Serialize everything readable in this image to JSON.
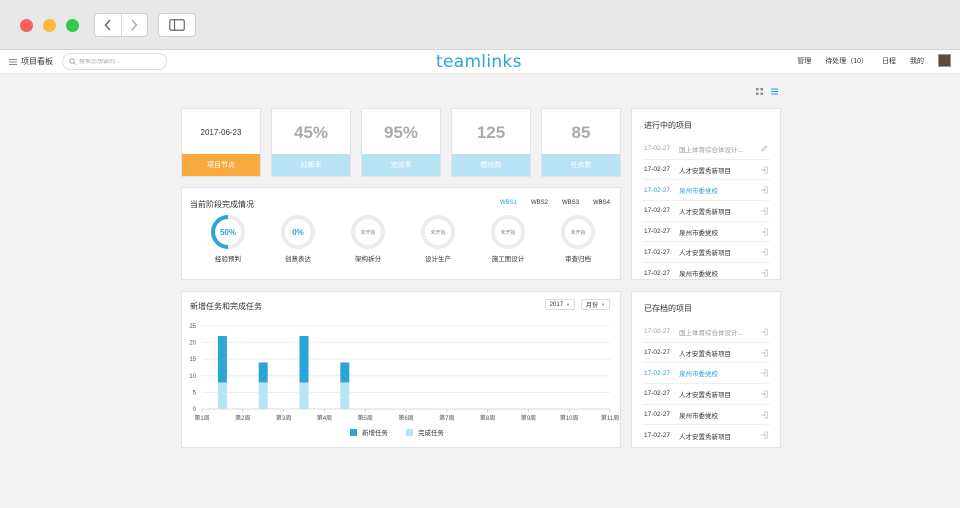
{
  "topbar": {
    "board_label": "项目看板",
    "search_placeholder": "搜索您想要的...",
    "logo": "teamlinks",
    "nav": [
      "管理",
      "待处理（10）",
      "日程",
      "我的"
    ]
  },
  "stats": [
    {
      "value": "2017-06-23",
      "label": "项目节点"
    },
    {
      "value": "45%",
      "label": "延期率"
    },
    {
      "value": "95%",
      "label": "完成率"
    },
    {
      "value": "125",
      "label": "模块数"
    },
    {
      "value": "85",
      "label": "任务数"
    }
  ],
  "phase": {
    "title": "当前阶段完成情况",
    "tabs": [
      "WBS1",
      "WBS2",
      "WBS3",
      "WBS4"
    ],
    "items": [
      {
        "value": "50%",
        "label": "经验预判",
        "progress": 0.5
      },
      {
        "value": "0%",
        "label": "创意表达",
        "progress": 0
      },
      {
        "value": "未开始",
        "label": "架构拆分",
        "progress": 0
      },
      {
        "value": "未开始",
        "label": "设计生产",
        "progress": 0
      },
      {
        "value": "未开始",
        "label": "施工图设计",
        "progress": 0
      },
      {
        "value": "未开始",
        "label": "审查归档",
        "progress": 0
      }
    ]
  },
  "chart": {
    "title": "新增任务和完成任务",
    "year_select": "2017",
    "period_select": "月份",
    "colors": {
      "new": "#2ba5d4",
      "done": "#b7e3f5"
    }
  },
  "chart_data": {
    "type": "bar",
    "stacked": true,
    "categories": [
      "第1周",
      "第2周",
      "第3周",
      "第4周",
      "第5周",
      "第6周",
      "第7周",
      "第8周",
      "第9周",
      "第10周",
      "第11周"
    ],
    "series": [
      {
        "name": "完成任务",
        "values": [
          8,
          8,
          8,
          8,
          0,
          0,
          0,
          0,
          0,
          0,
          0
        ]
      },
      {
        "name": "新增任务",
        "values": [
          14,
          6,
          14,
          6,
          0,
          0,
          0,
          0,
          0,
          0,
          0
        ]
      }
    ],
    "yticks": [
      0,
      5,
      10,
      15,
      20,
      25
    ],
    "ylim": [
      0,
      25
    ]
  },
  "ongoing": {
    "title": "进行中的项目",
    "items": [
      {
        "date": "17-02-27",
        "name": "国上体育综合体设计...",
        "state": "muted",
        "icon": "edit-icon"
      },
      {
        "date": "17-02-27",
        "name": "人才安置秀新项目",
        "state": "",
        "icon": "enter-icon"
      },
      {
        "date": "17-02-27",
        "name": "泉州市委党校",
        "state": "hl",
        "icon": "enter-icon"
      },
      {
        "date": "17-02-27",
        "name": "人才安置秀新项目",
        "state": "",
        "icon": "enter-icon"
      },
      {
        "date": "17-02-27",
        "name": "泉州市委党校",
        "state": "",
        "icon": "enter-icon"
      },
      {
        "date": "17-02-27",
        "name": "人才安置秀新项目",
        "state": "",
        "icon": "enter-icon"
      },
      {
        "date": "17-02-27",
        "name": "泉州市委党校",
        "state": "",
        "icon": "enter-icon"
      }
    ]
  },
  "archived": {
    "title": "已存档的项目",
    "items": [
      {
        "date": "17-02-27",
        "name": "国上体育综合体设计...",
        "state": "muted",
        "icon": "enter-icon"
      },
      {
        "date": "17-02-27",
        "name": "人才安置秀新项目",
        "state": "",
        "icon": "enter-icon"
      },
      {
        "date": "17-02-27",
        "name": "泉州市委党校",
        "state": "hl",
        "icon": "enter-icon"
      },
      {
        "date": "17-02-27",
        "name": "人才安置秀新项目",
        "state": "",
        "icon": "enter-icon"
      },
      {
        "date": "17-02-27",
        "name": "泉州市委党校",
        "state": "",
        "icon": "enter-icon"
      },
      {
        "date": "17-02-27",
        "name": "人才安置秀新项目",
        "state": "",
        "icon": "enter-icon"
      }
    ]
  }
}
